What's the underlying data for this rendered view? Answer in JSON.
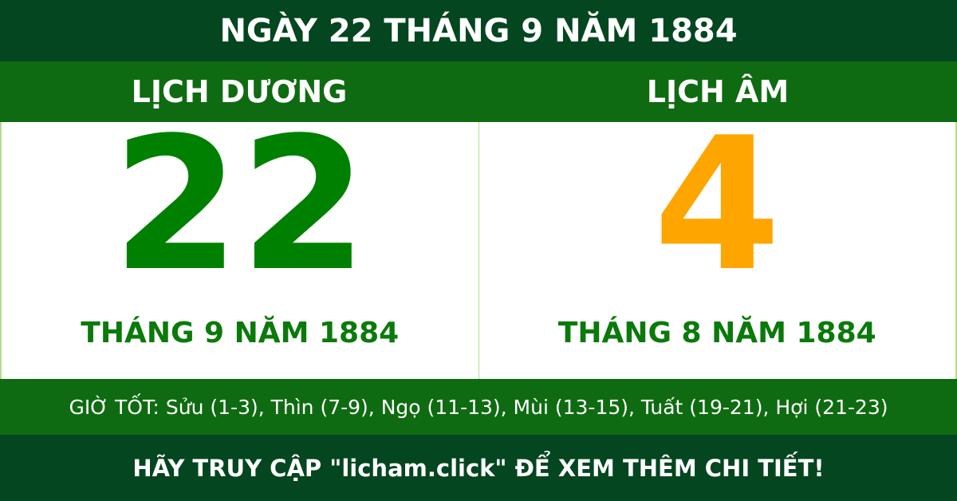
{
  "header": {
    "title": "NGÀY 22 THÁNG 9 NĂM 1884"
  },
  "solar": {
    "label": "LỊCH DƯƠNG",
    "day": "22",
    "month_year": "THÁNG 9 NĂM 1884",
    "color": "#008000"
  },
  "lunar": {
    "label": "LỊCH ÂM",
    "day": "4",
    "month_year": "THÁNG 8 NĂM 1884",
    "color": "#ffa500"
  },
  "good_hours": "GIỜ TỐT: Sửu (1-3), Thìn (7-9), Ngọ (11-13), Mùi (13-15), Tuất (19-21), Hợi (21-23)",
  "footer": {
    "text": "HÃY TRUY CẬP \"licham.click\" ĐỂ XEM THÊM CHI TIẾT!"
  }
}
